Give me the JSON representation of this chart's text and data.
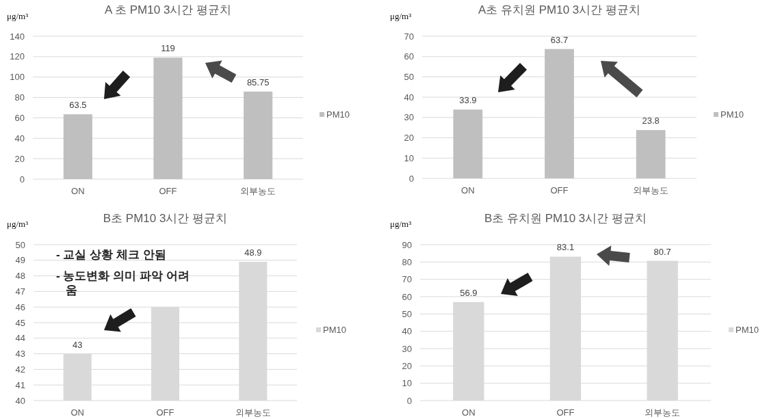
{
  "chart_data": [
    {
      "type": "bar",
      "title": "A 초 PM10 3시간 평균치",
      "ylabel": "μg/m³",
      "categories": [
        "ON",
        "OFF",
        "외부농도"
      ],
      "series": [
        {
          "name": "PM10",
          "color": "#bfbfbf",
          "values": [
            63.5,
            119,
            85.75
          ]
        }
      ],
      "ylim": [
        0,
        140
      ],
      "yticks": [
        0,
        20,
        40,
        60,
        80,
        100,
        120,
        140
      ],
      "grid": "y",
      "legend": "right",
      "data_labels": true
    },
    {
      "type": "bar",
      "title": "A초 유치원 PM10 3시간 평균치",
      "ylabel": "μg/m³",
      "categories": [
        "ON",
        "OFF",
        "외부농도"
      ],
      "series": [
        {
          "name": "PM10",
          "color": "#bfbfbf",
          "values": [
            33.9,
            63.7,
            23.8
          ]
        }
      ],
      "ylim": [
        0,
        70
      ],
      "yticks": [
        0,
        10,
        20,
        30,
        40,
        50,
        60,
        70
      ],
      "grid": "y",
      "legend": "right",
      "data_labels": true
    },
    {
      "type": "bar",
      "title": "B초 PM10 3시간 평균치",
      "ylabel": "μg/m³",
      "categories": [
        "ON",
        "OFF",
        "외부농도"
      ],
      "series": [
        {
          "name": "PM10",
          "color": "#d9d9d9",
          "values": [
            43,
            46,
            48.9
          ],
          "value_labels": [
            "43",
            null,
            "48.9"
          ]
        }
      ],
      "ylim": [
        40,
        50
      ],
      "yticks": [
        40,
        41,
        42,
        43,
        44,
        45,
        46,
        47,
        48,
        49,
        50
      ],
      "grid": "y",
      "legend": "right",
      "annotations": [
        "- 교실 상황 체크 안됨",
        "- 농도변화 의미 파악 어려움"
      ]
    },
    {
      "type": "bar",
      "title": "B초 유치원 PM10 3시간 평균치",
      "ylabel": "μg/m³",
      "categories": [
        "ON",
        "OFF",
        "외부농도"
      ],
      "series": [
        {
          "name": "PM10",
          "color": "#d9d9d9",
          "values": [
            56.9,
            83.1,
            80.7
          ]
        }
      ],
      "ylim": [
        0,
        90
      ],
      "yticks": [
        0,
        10,
        20,
        30,
        40,
        50,
        60,
        70,
        80,
        90
      ],
      "grid": "y",
      "legend": "right",
      "data_labels": true
    }
  ]
}
